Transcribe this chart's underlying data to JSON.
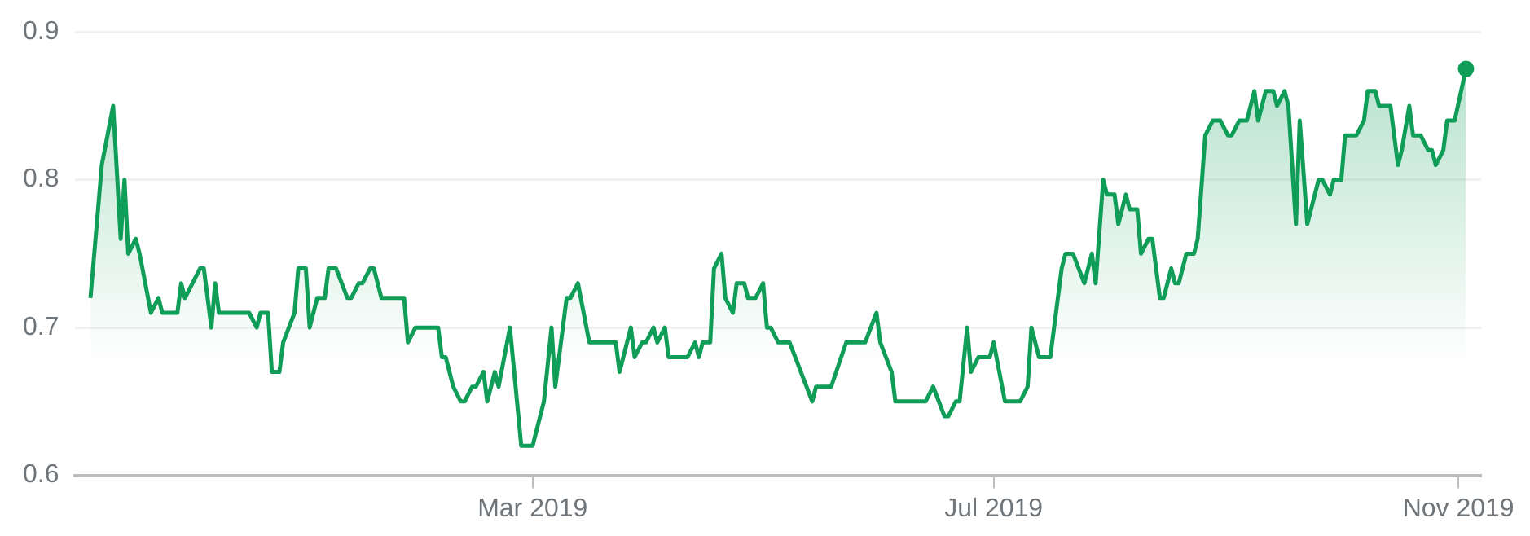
{
  "chart_data": {
    "type": "area",
    "x": [
      "2018-11-04",
      "2018-11-05",
      "2018-11-07",
      "2018-11-10",
      "2018-11-12",
      "2018-11-13",
      "2018-11-14",
      "2018-11-16",
      "2018-11-17",
      "2018-11-20",
      "2018-11-22",
      "2018-11-23",
      "2018-11-27",
      "2018-11-28",
      "2018-11-29",
      "2018-12-03",
      "2018-12-04",
      "2018-12-06",
      "2018-12-07",
      "2018-12-08",
      "2018-12-16",
      "2018-12-18",
      "2018-12-19",
      "2018-12-21",
      "2018-12-22",
      "2018-12-24",
      "2018-12-25",
      "2018-12-28",
      "2018-12-29",
      "2018-12-31",
      "2019-01-01",
      "2019-01-03",
      "2019-01-05",
      "2019-01-06",
      "2019-01-08",
      "2019-01-11",
      "2019-01-12",
      "2019-01-14",
      "2019-01-15",
      "2019-01-17",
      "2019-01-18",
      "2019-01-20",
      "2019-01-26",
      "2019-01-27",
      "2019-01-29",
      "2019-02-04",
      "2019-02-05",
      "2019-02-06",
      "2019-02-08",
      "2019-02-10",
      "2019-02-11",
      "2019-02-13",
      "2019-02-14",
      "2019-02-16",
      "2019-02-17",
      "2019-02-19",
      "2019-02-20",
      "2019-02-23",
      "2019-02-26",
      "2019-03-01",
      "2019-03-02",
      "2019-03-04",
      "2019-03-06",
      "2019-03-07",
      "2019-03-09",
      "2019-03-10",
      "2019-03-11",
      "2019-03-13",
      "2019-03-16",
      "2019-03-23",
      "2019-03-24",
      "2019-03-25",
      "2019-03-27",
      "2019-03-28",
      "2019-03-30",
      "2019-03-31",
      "2019-04-02",
      "2019-04-03",
      "2019-04-05",
      "2019-04-06",
      "2019-04-11",
      "2019-04-13",
      "2019-04-14",
      "2019-04-15",
      "2019-04-17",
      "2019-04-18",
      "2019-04-20",
      "2019-04-21",
      "2019-04-23",
      "2019-04-24",
      "2019-04-26",
      "2019-04-27",
      "2019-04-29",
      "2019-05-01",
      "2019-05-02",
      "2019-05-03",
      "2019-05-05",
      "2019-05-08",
      "2019-05-14",
      "2019-05-15",
      "2019-05-19",
      "2019-05-23",
      "2019-05-28",
      "2019-05-31",
      "2019-06-01",
      "2019-06-04",
      "2019-06-05",
      "2019-06-13",
      "2019-06-15",
      "2019-06-18",
      "2019-06-19",
      "2019-06-21",
      "2019-06-22",
      "2019-06-24",
      "2019-06-25",
      "2019-06-27",
      "2019-06-30",
      "2019-07-01",
      "2019-07-04",
      "2019-07-08",
      "2019-07-10",
      "2019-07-11",
      "2019-07-13",
      "2019-07-16",
      "2019-07-19",
      "2019-07-20",
      "2019-07-22",
      "2019-07-25",
      "2019-07-27",
      "2019-07-28",
      "2019-07-30",
      "2019-07-31",
      "2019-08-02",
      "2019-08-03",
      "2019-08-05",
      "2019-08-06",
      "2019-08-08",
      "2019-08-09",
      "2019-08-11",
      "2019-08-12",
      "2019-08-14",
      "2019-08-15",
      "2019-08-17",
      "2019-08-18",
      "2019-08-19",
      "2019-08-21",
      "2019-08-23",
      "2019-08-24",
      "2019-08-26",
      "2019-08-28",
      "2019-08-30",
      "2019-09-01",
      "2019-09-02",
      "2019-09-04",
      "2019-09-06",
      "2019-09-08",
      "2019-09-09",
      "2019-09-11",
      "2019-09-13",
      "2019-09-14",
      "2019-09-16",
      "2019-09-17",
      "2019-09-19",
      "2019-09-20",
      "2019-09-22",
      "2019-09-23",
      "2019-09-25",
      "2019-09-26",
      "2019-09-28",
      "2019-09-29",
      "2019-10-01",
      "2019-10-02",
      "2019-10-05",
      "2019-10-07",
      "2019-10-08",
      "2019-10-10",
      "2019-10-11",
      "2019-10-14",
      "2019-10-16",
      "2019-10-17",
      "2019-10-19",
      "2019-10-20",
      "2019-10-22",
      "2019-10-24",
      "2019-10-25",
      "2019-10-26",
      "2019-10-28",
      "2019-10-29",
      "2019-10-31",
      "2019-11-03"
    ],
    "values": [
      0.72,
      0.75,
      0.81,
      0.85,
      0.76,
      0.8,
      0.75,
      0.76,
      0.75,
      0.71,
      0.72,
      0.71,
      0.71,
      0.73,
      0.72,
      0.74,
      0.74,
      0.7,
      0.73,
      0.71,
      0.71,
      0.7,
      0.71,
      0.71,
      0.67,
      0.67,
      0.69,
      0.71,
      0.74,
      0.74,
      0.7,
      0.72,
      0.72,
      0.74,
      0.74,
      0.72,
      0.72,
      0.73,
      0.73,
      0.74,
      0.74,
      0.72,
      0.72,
      0.69,
      0.7,
      0.7,
      0.68,
      0.68,
      0.66,
      0.65,
      0.65,
      0.66,
      0.66,
      0.67,
      0.65,
      0.67,
      0.66,
      0.7,
      0.62,
      0.62,
      0.63,
      0.65,
      0.7,
      0.66,
      0.7,
      0.72,
      0.72,
      0.73,
      0.69,
      0.69,
      0.67,
      0.68,
      0.7,
      0.68,
      0.69,
      0.69,
      0.7,
      0.69,
      0.7,
      0.68,
      0.68,
      0.69,
      0.68,
      0.69,
      0.69,
      0.74,
      0.75,
      0.72,
      0.71,
      0.73,
      0.73,
      0.72,
      0.72,
      0.73,
      0.7,
      0.7,
      0.69,
      0.69,
      0.65,
      0.66,
      0.66,
      0.69,
      0.69,
      0.71,
      0.69,
      0.67,
      0.65,
      0.65,
      0.66,
      0.64,
      0.64,
      0.65,
      0.65,
      0.7,
      0.67,
      0.68,
      0.68,
      0.69,
      0.65,
      0.65,
      0.66,
      0.7,
      0.68,
      0.68,
      0.74,
      0.75,
      0.75,
      0.73,
      0.75,
      0.73,
      0.8,
      0.79,
      0.79,
      0.77,
      0.79,
      0.78,
      0.78,
      0.75,
      0.76,
      0.76,
      0.72,
      0.72,
      0.74,
      0.73,
      0.73,
      0.75,
      0.75,
      0.76,
      0.83,
      0.84,
      0.84,
      0.83,
      0.83,
      0.84,
      0.84,
      0.86,
      0.84,
      0.86,
      0.86,
      0.85,
      0.86,
      0.85,
      0.77,
      0.84,
      0.77,
      0.78,
      0.8,
      0.8,
      0.79,
      0.8,
      0.8,
      0.83,
      0.83,
      0.84,
      0.86,
      0.86,
      0.85,
      0.85,
      0.81,
      0.82,
      0.85,
      0.83,
      0.83,
      0.82,
      0.82,
      0.81,
      0.82,
      0.84,
      0.84,
      0.875
    ],
    "color": "#0f9d58",
    "xlim": [
      "2018-10-31",
      "2019-11-07"
    ],
    "xticks": [
      {
        "value": "2019-03-01",
        "label": "Mar 2019"
      },
      {
        "value": "2019-07-01",
        "label": "Jul 2019"
      },
      {
        "value": "2019-11-01",
        "label": "Nov 2019"
      }
    ],
    "ylim": [
      0.6,
      0.9
    ],
    "yticks": [
      0.6,
      0.7,
      0.8,
      0.9
    ],
    "grid": "y",
    "legend": false
  }
}
